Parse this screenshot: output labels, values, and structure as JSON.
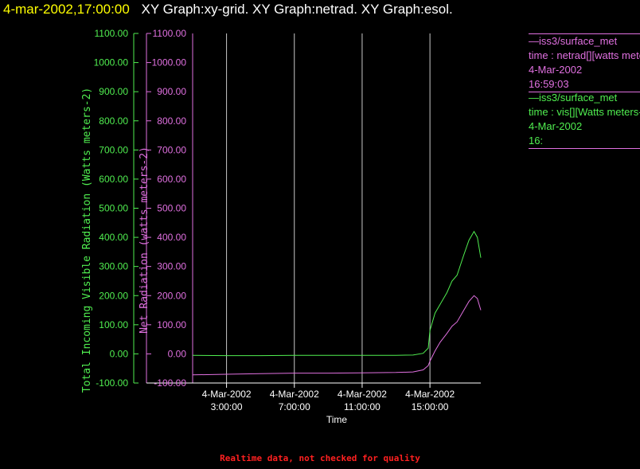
{
  "title": {
    "time": "4-mar-2002,17:00:00",
    "graphs": "XY Graph:xy-grid.  XY Graph:netrad.  XY Graph:esol."
  },
  "legend": [
    {
      "station": "iss3/surface_met",
      "variable": "time : netrad[][watts meters-2]",
      "date": "4-Mar-2002",
      "time": "16:59:03",
      "color": "#e070e0"
    },
    {
      "station": "iss3/surface_met",
      "variable": "time : vis[][Watts meters-2]",
      "date": "4-Mar-2002",
      "time": "16:",
      "color": "#50ee50"
    }
  ],
  "footer": "Realtime data, not checked for quality",
  "chart_data": {
    "type": "line",
    "xlabel": "Time",
    "x_range": [
      1,
      18
    ],
    "x_ticks": [
      {
        "value": 3,
        "date": "4-Mar-2002",
        "time": "3:00:00"
      },
      {
        "value": 7,
        "date": "4-Mar-2002",
        "time": "7:00:00"
      },
      {
        "value": 11,
        "date": "4-Mar-2002",
        "time": "11:00:00"
      },
      {
        "value": 15,
        "date": "4-Mar-2002",
        "time": "15:00:00"
      }
    ],
    "grid": "vertical lines at x ticks",
    "y_axes": [
      {
        "label": "Total Incoming Visible Radiation (Watts meters-2)",
        "color": "#50ee50",
        "ylim": [
          -100,
          1100
        ],
        "ticks": [
          "-100.00",
          "0.00",
          "100.00",
          "200.00",
          "300.00",
          "400.00",
          "500.00",
          "600.00",
          "700.00",
          "800.00",
          "900.00",
          "1000.00",
          "1100.00"
        ]
      },
      {
        "label": "Net Radiation (watts meters-2)",
        "color": "#e070e0",
        "ylim": [
          -100,
          1100
        ],
        "ticks": [
          "-100.00",
          "0.00",
          "100.00",
          "200.00",
          "300.00",
          "400.00",
          "500.00",
          "600.00",
          "700.00",
          "800.00",
          "900.00",
          "1000.00",
          "1100.00"
        ]
      }
    ],
    "series": [
      {
        "name": "iss3/surface_met vis",
        "color": "#50ee50",
        "x": [
          1,
          3,
          5,
          7,
          9,
          11,
          13,
          14,
          14.6,
          14.9,
          15.0,
          15.3,
          15.6,
          16.0,
          16.3,
          16.6,
          17.0,
          17.3,
          17.6,
          17.8,
          18.0
        ],
        "y": [
          -5,
          -6,
          -6,
          -5,
          -5,
          -5,
          -5,
          -4,
          2,
          20,
          80,
          140,
          170,
          210,
          250,
          270,
          340,
          390,
          420,
          400,
          330
        ]
      },
      {
        "name": "iss3/surface_met netrad",
        "color": "#e070e0",
        "x": [
          1,
          3,
          5,
          7,
          9,
          11,
          13,
          14,
          14.6,
          14.9,
          15.0,
          15.3,
          15.6,
          16.0,
          16.3,
          16.6,
          17.0,
          17.3,
          17.6,
          17.8,
          18.0
        ],
        "y": [
          -72,
          -70,
          -68,
          -66,
          -66,
          -65,
          -64,
          -62,
          -55,
          -40,
          -25,
          10,
          40,
          70,
          95,
          110,
          150,
          180,
          200,
          190,
          150
        ]
      }
    ]
  }
}
